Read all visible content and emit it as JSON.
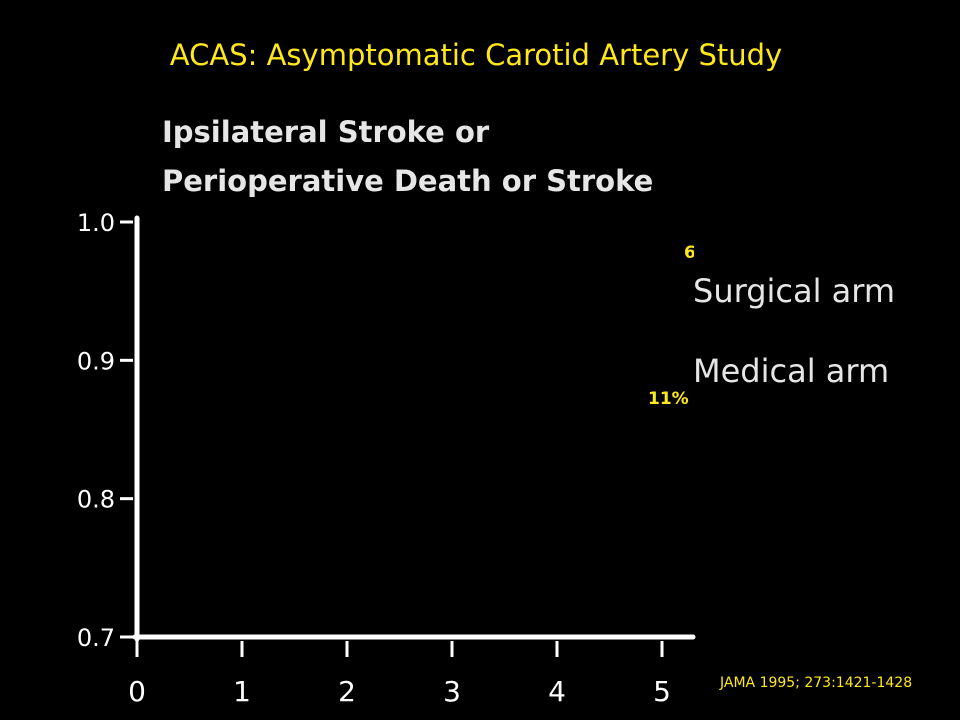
{
  "title": "ACAS: Asymptomatic Carotid Artery Study",
  "source": "JAMA 1995; 273:1421-1428",
  "colors": {
    "accent": "#FFE81A",
    "text": "#E6E6E6",
    "axis": "#FFFFFF",
    "background": "#000000"
  },
  "chart_data": {
    "type": "line",
    "title_lines": [
      "Ipsilateral Stroke or",
      "Perioperative Death or Stroke"
    ],
    "xlabel": "",
    "ylabel": "",
    "x_ticks": [
      "0",
      "1",
      "2",
      "3",
      "4",
      "5"
    ],
    "y_ticks": [
      "0.7",
      "0.8",
      "0.9",
      "1.0"
    ],
    "xlim": [
      0,
      5.2
    ],
    "ylim": [
      0.7,
      1.0
    ],
    "grid": false,
    "legend": {
      "position": "top-right",
      "entries": [
        "Surgical arm",
        "Medical arm"
      ]
    },
    "annotations": [
      "6",
      "11%"
    ],
    "series": []
  }
}
